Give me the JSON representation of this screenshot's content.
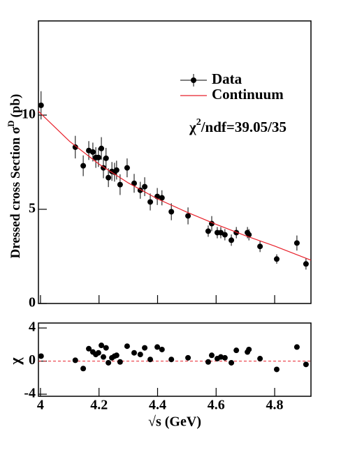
{
  "chart_data": [
    {
      "type": "errorbar",
      "ylabel": "Dressed cross Section  σ",
      "ylabel_sup": "D",
      "ylabel_unit": "(pb)",
      "annotation": {
        "main": "χ",
        "sup": "2",
        "rest": "/ndf=39.05/35"
      },
      "xlim": [
        3.993,
        4.924
      ],
      "ylim": [
        0,
        15
      ],
      "xticks": [
        4,
        4.2,
        4.4,
        4.6,
        4.8
      ],
      "yticks": [
        0,
        5,
        10
      ],
      "legend": "top-right",
      "series": [
        {
          "name": "Data",
          "kind": "points",
          "color": "#000000",
          "x": [
            4.002,
            4.119,
            4.146,
            4.165,
            4.179,
            4.189,
            4.198,
            4.208,
            4.215,
            4.224,
            4.232,
            4.244,
            4.253,
            4.26,
            4.272,
            4.296,
            4.32,
            4.341,
            4.356,
            4.375,
            4.399,
            4.415,
            4.447,
            4.504,
            4.573,
            4.585,
            4.604,
            4.616,
            4.63,
            4.652,
            4.669,
            4.707,
            4.712,
            4.75,
            4.807,
            4.876,
            4.907
          ],
          "values": [
            10.52,
            8.3,
            7.31,
            8.12,
            8.04,
            7.75,
            7.75,
            8.23,
            7.2,
            7.71,
            6.68,
            7.01,
            6.97,
            7.08,
            6.31,
            7.2,
            6.38,
            6.01,
            6.2,
            5.39,
            5.68,
            5.61,
            4.87,
            4.65,
            3.84,
            4.24,
            3.76,
            3.76,
            3.65,
            3.36,
            3.76,
            3.76,
            3.65,
            3.03,
            2.36,
            3.21,
            2.1
          ],
          "errors": [
            0.75,
            0.6,
            0.55,
            0.5,
            0.5,
            0.55,
            0.5,
            0.6,
            0.55,
            0.55,
            0.5,
            0.5,
            0.5,
            0.5,
            0.55,
            0.5,
            0.5,
            0.45,
            0.5,
            0.45,
            0.45,
            0.4,
            0.45,
            0.45,
            0.3,
            0.4,
            0.3,
            0.3,
            0.3,
            0.3,
            0.3,
            0.3,
            0.3,
            0.3,
            0.25,
            0.4,
            0.3
          ]
        },
        {
          "name": "Continuum",
          "kind": "line",
          "color": "#e8202a",
          "x": [
            3.993,
            4.1,
            4.2,
            4.3,
            4.4,
            4.5,
            4.6,
            4.7,
            4.8,
            4.924
          ],
          "values": [
            10.2,
            8.6,
            7.4,
            6.4,
            5.55,
            4.85,
            4.2,
            3.6,
            3.05,
            2.3
          ]
        }
      ]
    },
    {
      "type": "residual",
      "ylabel": "χ",
      "xlabel": "√s (GeV)",
      "xlim": [
        3.993,
        4.924
      ],
      "ylim": [
        -4.25,
        4.6
      ],
      "xticks": [
        4,
        4.2,
        4.4,
        4.6,
        4.8
      ],
      "yticks": [
        -4,
        0,
        4
      ],
      "reference_line": 0,
      "reference_color": "#e8202a",
      "color": "#000000",
      "x": [
        4.002,
        4.119,
        4.146,
        4.165,
        4.179,
        4.189,
        4.198,
        4.208,
        4.215,
        4.224,
        4.232,
        4.244,
        4.253,
        4.26,
        4.272,
        4.296,
        4.32,
        4.341,
        4.356,
        4.375,
        4.399,
        4.415,
        4.447,
        4.504,
        4.573,
        4.585,
        4.604,
        4.616,
        4.63,
        4.652,
        4.669,
        4.707,
        4.712,
        4.75,
        4.807,
        4.876,
        4.907
      ],
      "values": [
        0.6,
        0.1,
        -0.9,
        1.5,
        1.1,
        0.8,
        1.0,
        1.9,
        0.5,
        1.6,
        -0.2,
        0.4,
        0.6,
        0.7,
        -0.1,
        1.8,
        1.0,
        0.8,
        1.6,
        0.2,
        1.7,
        1.4,
        0.2,
        0.4,
        -0.1,
        0.7,
        0.3,
        0.5,
        0.4,
        -0.2,
        1.3,
        1.1,
        1.4,
        0.3,
        -1.0,
        1.7,
        -0.4
      ]
    }
  ]
}
